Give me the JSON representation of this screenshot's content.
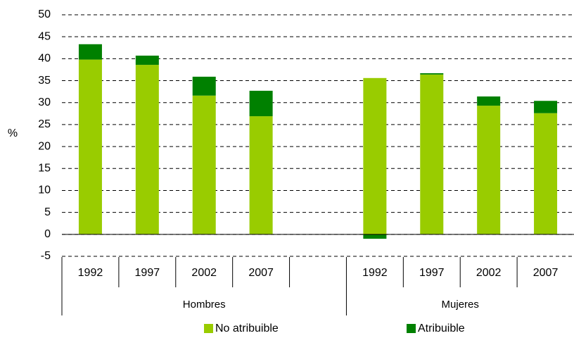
{
  "chart_data": {
    "type": "stacked-bar",
    "y_label": "%",
    "categories": [
      "1992",
      "1997",
      "2002",
      "2007",
      null,
      "1992",
      "1997",
      "2002",
      "2007"
    ],
    "groups": [
      {
        "name": "Hombres",
        "size": 5
      },
      {
        "name": "Mujeres",
        "size": 4
      }
    ],
    "series": [
      {
        "name": "No atribuible",
        "color": "#99cc00",
        "values": [
          39.8,
          38.6,
          31.6,
          26.9,
          null,
          35.6,
          36.4,
          29.3,
          27.6
        ]
      },
      {
        "name": "Atribuible",
        "color": "#008000",
        "values": [
          3.5,
          2.1,
          4.3,
          5.8,
          null,
          -1.0,
          0.3,
          2.1,
          2.8
        ]
      }
    ],
    "ylim": [
      -5,
      50
    ],
    "yticks": [
      -5,
      0,
      5,
      10,
      15,
      20,
      25,
      30,
      35,
      40,
      45,
      50
    ],
    "grid": true,
    "legend": "bottom"
  }
}
